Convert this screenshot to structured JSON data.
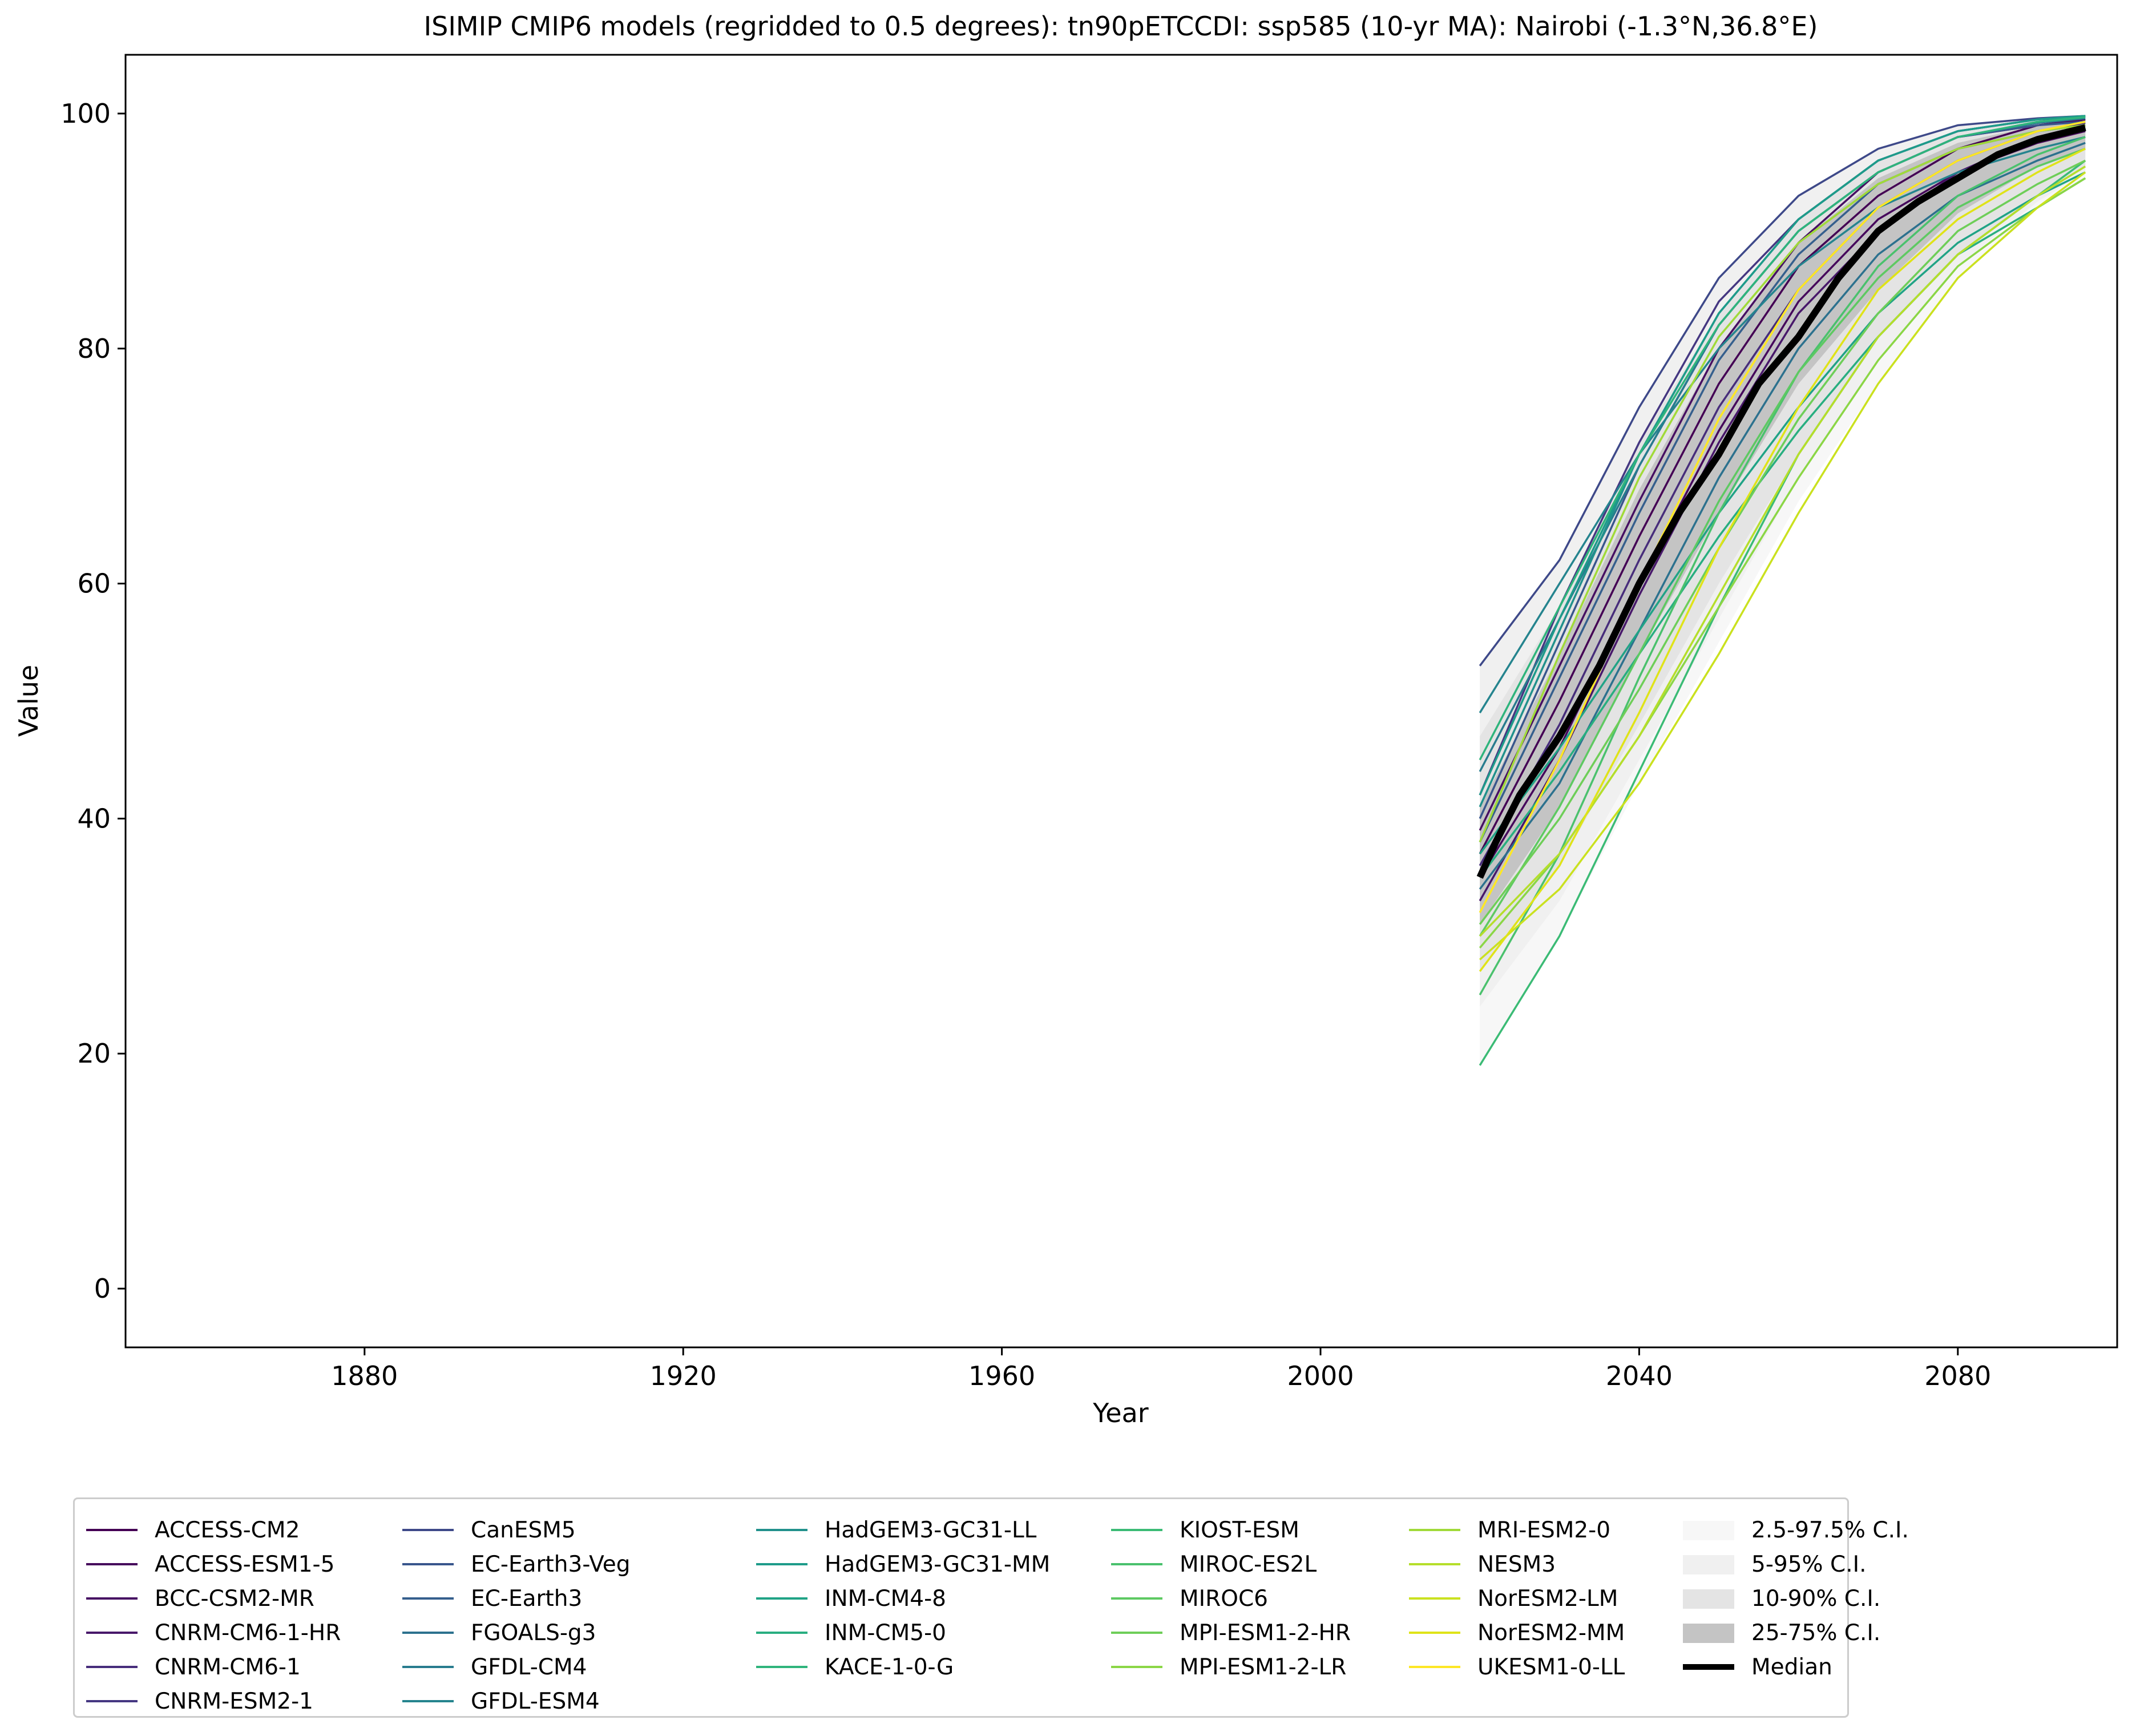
{
  "chart_data": {
    "type": "line",
    "title": "ISIMIP CMIP6 models (regridded to 0.5 degrees): tn90pETCCDI: ssp585 (10-yr MA): Nairobi (-1.3°N,36.8°E)",
    "xlabel": "Year",
    "ylabel": "Value",
    "xlim": [
      1850,
      2100
    ],
    "ylim": [
      -5,
      105
    ],
    "x_ticks": [
      1880,
      1920,
      1960,
      2000,
      2040,
      2080
    ],
    "y_ticks": [
      0,
      20,
      40,
      60,
      80,
      100
    ],
    "grid": false,
    "legend_position": "bottom",
    "series": [
      {
        "name": "ACCESS-CM2",
        "color": "#440154",
        "x": [
          2020,
          2030,
          2040,
          2050,
          2060,
          2070,
          2080,
          2090,
          2096
        ],
        "values": [
          37,
          50,
          64,
          77,
          87,
          93,
          97,
          99,
          99.5
        ]
      },
      {
        "name": "ACCESS-ESM1-5",
        "color": "#46085c",
        "x": [
          2020,
          2030,
          2040,
          2050,
          2060,
          2070,
          2080,
          2090,
          2096
        ],
        "values": [
          35,
          46,
          60,
          73,
          84,
          91,
          95,
          97.5,
          98.5
        ]
      },
      {
        "name": "BCC-CSM2-MR",
        "color": "#471063",
        "x": [
          2020,
          2030,
          2040,
          2050,
          2060,
          2070,
          2080,
          2090,
          2096
        ],
        "values": [
          39,
          53,
          67,
          80,
          89,
          95,
          98,
          99,
          99.5
        ]
      },
      {
        "name": "CNRM-CM6-1-HR",
        "color": "#48186a",
        "x": [
          2020,
          2030,
          2040,
          2050,
          2060,
          2070,
          2080,
          2090,
          2096
        ],
        "values": [
          33,
          45,
          59,
          72,
          83,
          90,
          95,
          98,
          99
        ]
      },
      {
        "name": "CNRM-CM6-1",
        "color": "#472d7b",
        "x": [
          2020,
          2030,
          2040,
          2050,
          2060,
          2070,
          2080,
          2090,
          2096
        ],
        "values": [
          36,
          48,
          62,
          75,
          85,
          92,
          96,
          98.5,
          99.2
        ]
      },
      {
        "name": "CNRM-ESM2-1",
        "color": "#453781",
        "x": [
          2020,
          2030,
          2040,
          2050,
          2060,
          2070,
          2080,
          2090,
          2096
        ],
        "values": [
          42,
          58,
          72,
          84,
          91,
          96,
          98.5,
          99.5,
          99.7
        ]
      },
      {
        "name": "CanESM5",
        "color": "#3e4989",
        "x": [
          2020,
          2030,
          2040,
          2050,
          2060,
          2070,
          2080,
          2090,
          2096
        ],
        "values": [
          53,
          62,
          75,
          86,
          93,
          97,
          99,
          99.6,
          99.8
        ]
      },
      {
        "name": "EC-Earth3-Veg",
        "color": "#39568c",
        "x": [
          2020,
          2030,
          2040,
          2050,
          2060,
          2070,
          2080,
          2090,
          2096
        ],
        "values": [
          40,
          55,
          70,
          82,
          90,
          95,
          98,
          99,
          99.3
        ]
      },
      {
        "name": "EC-Earth3",
        "color": "#355f8d",
        "x": [
          2020,
          2030,
          2040,
          2050,
          2060,
          2070,
          2080,
          2090,
          2096
        ],
        "values": [
          38,
          52,
          66,
          79,
          88,
          94,
          97,
          98.5,
          99
        ]
      },
      {
        "name": "FGOALS-g3",
        "color": "#2c718e",
        "x": [
          2020,
          2030,
          2040,
          2050,
          2060,
          2070,
          2080,
          2090,
          2096
        ],
        "values": [
          34,
          43,
          56,
          69,
          80,
          88,
          93,
          96,
          97.5
        ]
      },
      {
        "name": "GFDL-CM4",
        "color": "#287c8e",
        "x": [
          2020,
          2030,
          2040,
          2050,
          2060,
          2070,
          2080,
          2090,
          2096
        ],
        "values": [
          44,
          57,
          70,
          82,
          90,
          95,
          98,
          99.2,
          99.6
        ]
      },
      {
        "name": "GFDL-ESM4",
        "color": "#25848e",
        "x": [
          2020,
          2030,
          2040,
          2050,
          2060,
          2070,
          2080,
          2090,
          2096
        ],
        "values": [
          49,
          60,
          71,
          80,
          87,
          92,
          95,
          97,
          98
        ]
      },
      {
        "name": "HadGEM3-GC31-LL",
        "color": "#21918c",
        "x": [
          2020,
          2030,
          2040,
          2050,
          2060,
          2070,
          2080,
          2090,
          2096
        ],
        "values": [
          41,
          56,
          71,
          83,
          91,
          96,
          98.5,
          99.5,
          99.8
        ]
      },
      {
        "name": "HadGEM3-GC31-MM",
        "color": "#1e9b8a",
        "x": [
          2020,
          2030,
          2040,
          2050,
          2060,
          2070,
          2080,
          2090,
          2096
        ],
        "values": [
          42,
          57,
          71,
          83,
          91,
          96,
          98.5,
          99.5,
          99.8
        ]
      },
      {
        "name": "INM-CM4-8",
        "color": "#20a386",
        "x": [
          2020,
          2030,
          2040,
          2050,
          2060,
          2070,
          2080,
          2090,
          2096
        ],
        "values": [
          37,
          46,
          56,
          66,
          75,
          83,
          89,
          93,
          95
        ]
      },
      {
        "name": "INM-CM5-0",
        "color": "#28ae80",
        "x": [
          2020,
          2030,
          2040,
          2050,
          2060,
          2070,
          2080,
          2090,
          2096
        ],
        "values": [
          35,
          44,
          54,
          64,
          73,
          81,
          88,
          92,
          94.5
        ]
      },
      {
        "name": "KACE-1-0-G",
        "color": "#2fb47c",
        "x": [
          2020,
          2030,
          2040,
          2050,
          2060,
          2070,
          2080,
          2090,
          2096
        ],
        "values": [
          45,
          58,
          71,
          82,
          90,
          95,
          98,
          99.3,
          99.7
        ]
      },
      {
        "name": "KIOST-ESM",
        "color": "#3bbb75",
        "x": [
          2020,
          2030,
          2040,
          2050,
          2060,
          2070,
          2080,
          2090,
          2096
        ],
        "values": [
          19,
          30,
          44,
          58,
          71,
          81,
          88,
          93,
          96
        ]
      },
      {
        "name": "MIROC-ES2L",
        "color": "#4ac16d",
        "x": [
          2020,
          2030,
          2040,
          2050,
          2060,
          2070,
          2080,
          2090,
          2096
        ],
        "values": [
          25,
          37,
          52,
          66,
          78,
          87,
          93,
          96.5,
          98
        ]
      },
      {
        "name": "MIROC6",
        "color": "#5ec962",
        "x": [
          2020,
          2030,
          2040,
          2050,
          2060,
          2070,
          2080,
          2090,
          2096
        ],
        "values": [
          30,
          41,
          54,
          67,
          78,
          86,
          92,
          95.5,
          97
        ]
      },
      {
        "name": "MPI-ESM1-2-HR",
        "color": "#6ece58",
        "x": [
          2020,
          2030,
          2040,
          2050,
          2060,
          2070,
          2080,
          2090,
          2096
        ],
        "values": [
          31,
          40,
          51,
          63,
          74,
          83,
          90,
          94,
          96
        ]
      },
      {
        "name": "MPI-ESM1-2-LR",
        "color": "#8bd646",
        "x": [
          2020,
          2030,
          2040,
          2050,
          2060,
          2070,
          2080,
          2090,
          2096
        ],
        "values": [
          29,
          37,
          47,
          58,
          69,
          79,
          87,
          92,
          94.5
        ]
      },
      {
        "name": "MRI-ESM2-0",
        "color": "#a0da39",
        "x": [
          2020,
          2030,
          2040,
          2050,
          2060,
          2070,
          2080,
          2090,
          2096
        ],
        "values": [
          38,
          54,
          69,
          81,
          89,
          94,
          97,
          98.5,
          99
        ]
      },
      {
        "name": "NESM3",
        "color": "#b5de2b",
        "x": [
          2020,
          2030,
          2040,
          2050,
          2060,
          2070,
          2080,
          2090,
          2096
        ],
        "values": [
          30,
          37,
          47,
          59,
          71,
          81,
          88,
          93,
          95.5
        ]
      },
      {
        "name": "NorESM2-LM",
        "color": "#cae11f",
        "x": [
          2020,
          2030,
          2040,
          2050,
          2060,
          2070,
          2080,
          2090,
          2096
        ],
        "values": [
          28,
          34,
          43,
          54,
          66,
          77,
          86,
          92,
          95
        ]
      },
      {
        "name": "NorESM2-MM",
        "color": "#dfe318",
        "x": [
          2020,
          2030,
          2040,
          2050,
          2060,
          2070,
          2080,
          2090,
          2096
        ],
        "values": [
          27,
          36,
          49,
          63,
          75,
          85,
          91,
          95,
          97
        ]
      },
      {
        "name": "UKESM1-0-LL",
        "color": "#fde725",
        "x": [
          2020,
          2030,
          2040,
          2050,
          2060,
          2070,
          2080,
          2090,
          2096
        ],
        "values": [
          32,
          45,
          60,
          74,
          85,
          92,
          96,
          98.5,
          99.3
        ]
      }
    ],
    "bands": [
      {
        "name": "2.5-97.5% C.I.",
        "color": "#f7f7f7",
        "x": [
          2020,
          2030,
          2040,
          2050,
          2060,
          2070,
          2080,
          2090,
          2096
        ],
        "lower": [
          19,
          30,
          43,
          55,
          67,
          77,
          86,
          92,
          94.5
        ],
        "upper": [
          53,
          62,
          75,
          86,
          93,
          97,
          99,
          99.6,
          99.8
        ]
      },
      {
        "name": "5-95% C.I.",
        "color": "#f0f0f0",
        "x": [
          2020,
          2030,
          2040,
          2050,
          2060,
          2070,
          2080,
          2090,
          2096
        ],
        "lower": [
          24,
          33,
          45,
          57,
          69,
          79,
          87,
          92.5,
          95
        ]
      },
      {
        "name": "10-90% C.I.",
        "color": "#e4e4e4",
        "x": [
          2020,
          2030,
          2040,
          2050,
          2060,
          2070,
          2080,
          2090,
          2096
        ],
        "lower": [
          27,
          36,
          48,
          60,
          71,
          81,
          88,
          93,
          95.5
        ],
        "upper": [
          47,
          58,
          72,
          83,
          91,
          96,
          98.5,
          99.5,
          99.7
        ]
      },
      {
        "name": "25-75% C.I.",
        "color": "#c4c4c4",
        "x": [
          2020,
          2030,
          2040,
          2050,
          2060,
          2070,
          2080,
          2090,
          2096
        ],
        "lower": [
          31,
          41,
          54,
          66,
          77,
          85,
          91.5,
          95.5,
          97
        ],
        "upper": [
          41,
          54,
          68,
          80,
          89,
          94.5,
          97.5,
          99,
          99.4
        ]
      }
    ],
    "median": {
      "name": "Median",
      "color": "#000000",
      "x": [
        2020,
        2022,
        2025,
        2030,
        2035,
        2040,
        2045,
        2050,
        2055,
        2060,
        2065,
        2070,
        2075,
        2080,
        2085,
        2090,
        2096
      ],
      "values": [
        35,
        38,
        42,
        47,
        53,
        60,
        66,
        71,
        77,
        81,
        86,
        90,
        92.5,
        94.5,
        96.5,
        97.8,
        98.8
      ]
    }
  }
}
